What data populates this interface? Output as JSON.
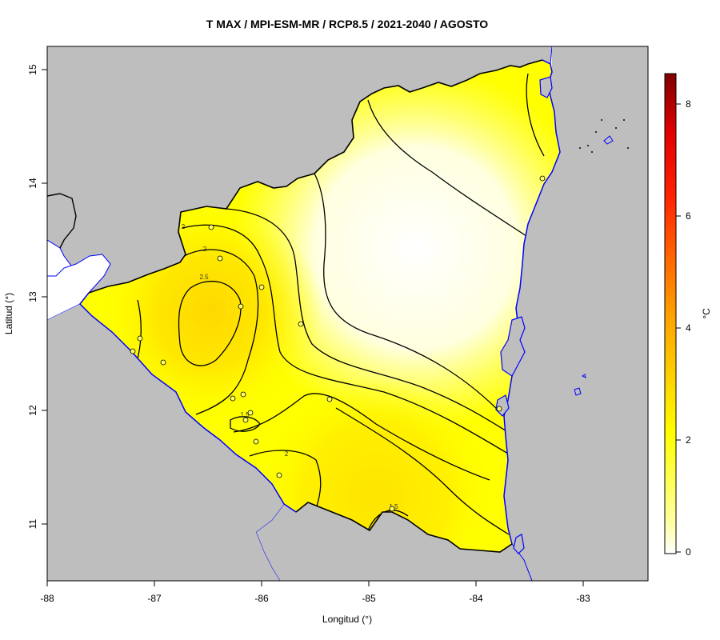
{
  "title": "T MAX / MPI-ESM-MR / RCP8.5 / 2021-2040 / AGOSTO",
  "x_axis": {
    "label": "Longitud (°)",
    "ticks": [
      "-88",
      "-87",
      "-86",
      "-85",
      "-84",
      "-83"
    ]
  },
  "y_axis": {
    "label": "Latitud (°)",
    "ticks": [
      "11",
      "12",
      "13",
      "14",
      "15"
    ]
  },
  "colorbar": {
    "unit": "°C",
    "ticks": [
      "0",
      "2",
      "4",
      "6",
      "8"
    ],
    "stops": [
      {
        "value": 0,
        "color": "#ffffff"
      },
      {
        "value": 1,
        "color": "#ffffa8"
      },
      {
        "value": 2,
        "color": "#ffff00"
      },
      {
        "value": 3,
        "color": "#ffd000"
      },
      {
        "value": 4,
        "color": "#ffa000"
      },
      {
        "value": 5,
        "color": "#ff6400"
      },
      {
        "value": 6,
        "color": "#ff2000"
      },
      {
        "value": 7,
        "color": "#e00000"
      },
      {
        "value": 8,
        "color": "#800000"
      }
    ]
  },
  "contour_labels": [
    "2.5",
    "2",
    "2",
    "1.5",
    "2",
    "1.5"
  ],
  "colors": {
    "land_outside": "#bebebe",
    "coastline": "#0000ff",
    "border": "#000000",
    "contour": "#000000"
  }
}
